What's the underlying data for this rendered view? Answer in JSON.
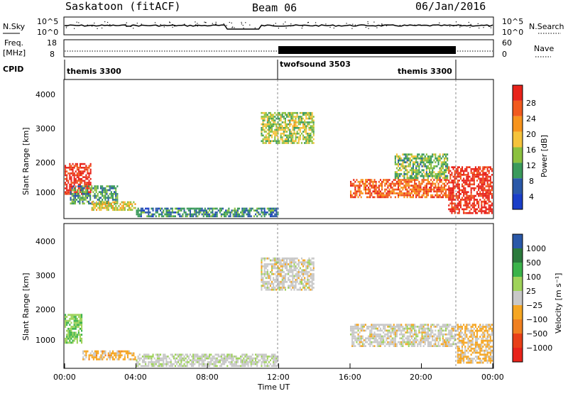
{
  "header": {
    "station": "Saskatoon (fitACF)",
    "beam": "Beam 06",
    "date": "06/Jan/2016"
  },
  "nsky_panel": {
    "left_label": "N.Sky",
    "right_label": "N.Search",
    "left_ticks": [
      "10^5",
      "10^0"
    ],
    "right_ticks": [
      "10^5",
      "10^0"
    ]
  },
  "freq_panel": {
    "left_label_1": "Freq.",
    "left_label_2": "[MHz]",
    "right_label": "Nave",
    "left_ticks": [
      "18",
      "8"
    ],
    "right_ticks": [
      "60",
      "0"
    ]
  },
  "cpid_panel": {
    "label": "CPID",
    "modes": [
      {
        "name": "themis 3300",
        "start_hour": 0,
        "end_hour": 12
      },
      {
        "name": "twofsound 3503",
        "start_hour": 12,
        "end_hour": 22
      },
      {
        "name": "themis 3300",
        "start_hour": 22,
        "end_hour": 24
      }
    ]
  },
  "power_panel": {
    "ylabel": "Slant Range [km]",
    "yticks": [
      "4000",
      "3000",
      "2000",
      "1000"
    ],
    "colorbar_label": "Power [dB]",
    "colorbar_ticks": [
      "28",
      "24",
      "20",
      "16",
      "12",
      "8",
      "4"
    ],
    "colors": [
      "#e8231a",
      "#f15a1e",
      "#f7941d",
      "#f5c33b",
      "#8bc13f",
      "#3a9a5b",
      "#2a58a8",
      "#1a3ec8"
    ]
  },
  "velocity_panel": {
    "ylabel": "Slant Range [km]",
    "yticks": [
      "4000",
      "3000",
      "2000",
      "1000"
    ],
    "colorbar_label": "Velocity [m s⁻¹]",
    "colorbar_ticks": [
      "1000",
      "500",
      "100",
      "25",
      "−25",
      "−100",
      "−500",
      "−1000"
    ],
    "colors": [
      "#2a58a8",
      "#2b7a3c",
      "#3bb34a",
      "#9fd35a",
      "#c8c8c8",
      "#f5a623",
      "#f08020",
      "#e84018",
      "#e8231a"
    ]
  },
  "xaxis": {
    "label": "Time UT",
    "ticks": [
      "00:00",
      "04:00",
      "08:00",
      "12:00",
      "16:00",
      "20:00",
      "00:00"
    ]
  },
  "chart_data": {
    "type": "heatmap",
    "title": "Saskatoon (fitACF) Beam 06 06/Jan/2016",
    "xlabel": "Time UT",
    "ylabel": "Slant Range [km]",
    "xlim_hours": [
      0,
      24
    ],
    "ylim_km": [
      180,
      4500
    ],
    "power_scale_db": [
      0,
      30
    ],
    "velocity_scale_ms": [
      -1000,
      1000
    ],
    "mode_change_hours": [
      12,
      22
    ],
    "power_regions": [
      {
        "t0": 0.0,
        "t1": 1.5,
        "r0": 900,
        "r1": 1900,
        "power_db": 28
      },
      {
        "t0": 0.3,
        "t1": 3.0,
        "r0": 600,
        "r1": 1200,
        "power_db": 10
      },
      {
        "t0": 1.5,
        "t1": 4.0,
        "r0": 400,
        "r1": 700,
        "power_db": 16
      },
      {
        "t0": 4.0,
        "t1": 12.0,
        "r0": 200,
        "r1": 500,
        "power_db": 8
      },
      {
        "t0": 11.0,
        "t1": 14.0,
        "r0": 2500,
        "r1": 3500,
        "power_db": 14
      },
      {
        "t0": 16.0,
        "t1": 21.5,
        "r0": 800,
        "r1": 1400,
        "power_db": 24
      },
      {
        "t0": 18.5,
        "t1": 21.5,
        "r0": 1400,
        "r1": 2200,
        "power_db": 12
      },
      {
        "t0": 21.5,
        "t1": 24.0,
        "r0": 300,
        "r1": 1800,
        "power_db": 28
      }
    ],
    "velocity_regions": [
      {
        "t0": 0.0,
        "t1": 1.0,
        "r0": 900,
        "r1": 1800,
        "velocity_ms": 300
      },
      {
        "t0": 1.0,
        "t1": 4.0,
        "r0": 400,
        "r1": 700,
        "velocity_ms": -200
      },
      {
        "t0": 4.0,
        "t1": 12.0,
        "r0": 200,
        "r1": 600,
        "velocity_ms": 50
      },
      {
        "t0": 11.0,
        "t1": 14.0,
        "r0": 2500,
        "r1": 3500,
        "velocity_ms": 0
      },
      {
        "t0": 16.0,
        "t1": 22.0,
        "r0": 800,
        "r1": 1500,
        "velocity_ms": 0
      },
      {
        "t0": 22.0,
        "t1": 24.0,
        "r0": 300,
        "r1": 1500,
        "velocity_ms": -150
      }
    ]
  }
}
